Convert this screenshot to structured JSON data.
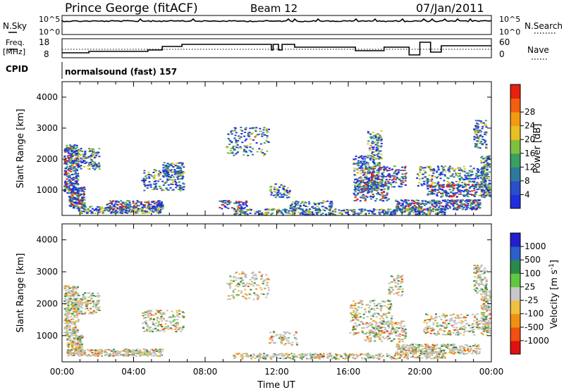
{
  "header": {
    "station": "Prince George (fitACF)",
    "beam": "Beam 12",
    "date": "07/Jan/2011"
  },
  "nsky_panel": {
    "left_label": "N.Sky",
    "left_tick_top": "10^5",
    "left_tick_bottom": "10^0",
    "right_label": "N.Search",
    "right_tick_top": "10^5",
    "right_tick_bottom": "10^0"
  },
  "freq_panel": {
    "left_label_line1": "Freq.",
    "left_label_line2": "[MHz]",
    "left_tick_top": "18",
    "left_tick_bottom": "8",
    "right_label": "Nave",
    "right_tick_top": "60",
    "right_tick_bottom": "0"
  },
  "cpid": {
    "label": "CPID",
    "value": "normalsound (fast) 157"
  },
  "colors": {
    "power_scale": [
      "#1f2fe0",
      "#2850c8",
      "#2e7a9a",
      "#38a060",
      "#80c040",
      "#e8c020",
      "#f39a10",
      "#f06010",
      "#e82010"
    ],
    "velocity_scale": [
      "#2020d0",
      "#2a60c8",
      "#2a8a4a",
      "#60c840",
      "#c8c8c8",
      "#f0c040",
      "#f09010",
      "#f05010",
      "#e01010"
    ],
    "gray_scatter": "#c0c0c0"
  },
  "chart_data": [
    {
      "type": "heatmap",
      "name": "power",
      "xlabel": "",
      "ylabel": "Slant Range [km]",
      "x_ticks": [
        "00:00",
        "04:00",
        "08:00",
        "12:00",
        "16:00",
        "20:00",
        "00:00"
      ],
      "xlim": [
        0,
        24
      ],
      "y_ticks": [
        "1000",
        "2000",
        "3000",
        "4000"
      ],
      "ylim": [
        180,
        4500
      ],
      "colorbar_label": "Power [dB]",
      "colorbar_ticks": [
        "4",
        "8",
        "12",
        "16",
        "20",
        "24",
        "28"
      ],
      "colorbar_range": [
        0,
        30
      ]
    },
    {
      "type": "heatmap",
      "name": "velocity",
      "xlabel": "Time UT",
      "ylabel": "Slant Range [km]",
      "x_ticks": [
        "00:00",
        "04:00",
        "08:00",
        "12:00",
        "16:00",
        "20:00",
        "00:00"
      ],
      "xlim": [
        0,
        24
      ],
      "y_ticks": [
        "1000",
        "2000",
        "3000",
        "4000"
      ],
      "ylim": [
        180,
        4500
      ],
      "colorbar_label": "Velocity [m s",
      "colorbar_label_sup": "-1",
      "colorbar_label_end": "]",
      "colorbar_ticks": [
        "1000",
        "500",
        "100",
        "25",
        "-25",
        "-100",
        "-500",
        "-1000"
      ]
    }
  ]
}
